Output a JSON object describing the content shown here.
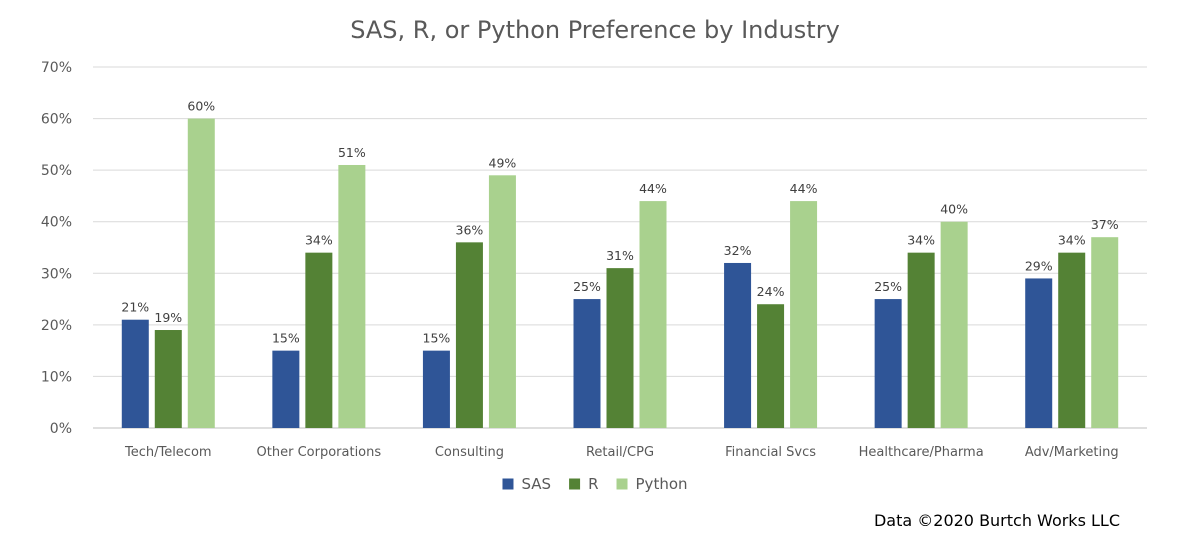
{
  "chart_data": {
    "type": "bar",
    "title": "SAS, R, or Python Preference by Industry",
    "xlabel": "",
    "ylabel": "",
    "ylim": [
      0,
      70
    ],
    "yticks": [
      "0%",
      "10%",
      "20%",
      "30%",
      "40%",
      "50%",
      "60%",
      "70%"
    ],
    "ytick_values": [
      0,
      10,
      20,
      30,
      40,
      50,
      60,
      70
    ],
    "value_format": "percent",
    "grid": true,
    "legend_position": "bottom",
    "categories": [
      "Tech/Telecom",
      "Other Corporations",
      "Consulting",
      "Retail/CPG",
      "Financial Svcs",
      "Healthcare/Pharma",
      "Adv/Marketing"
    ],
    "series": [
      {
        "name": "SAS",
        "color": "#2f5597",
        "values": [
          21,
          15,
          15,
          25,
          32,
          25,
          29
        ]
      },
      {
        "name": "R",
        "color": "#548235",
        "values": [
          19,
          34,
          36,
          31,
          24,
          34,
          34
        ]
      },
      {
        "name": "Python",
        "color": "#a9d18e",
        "values": [
          60,
          51,
          49,
          44,
          44,
          40,
          37
        ]
      }
    ]
  },
  "source_note": "Data ©2020 Burtch Works LLC"
}
